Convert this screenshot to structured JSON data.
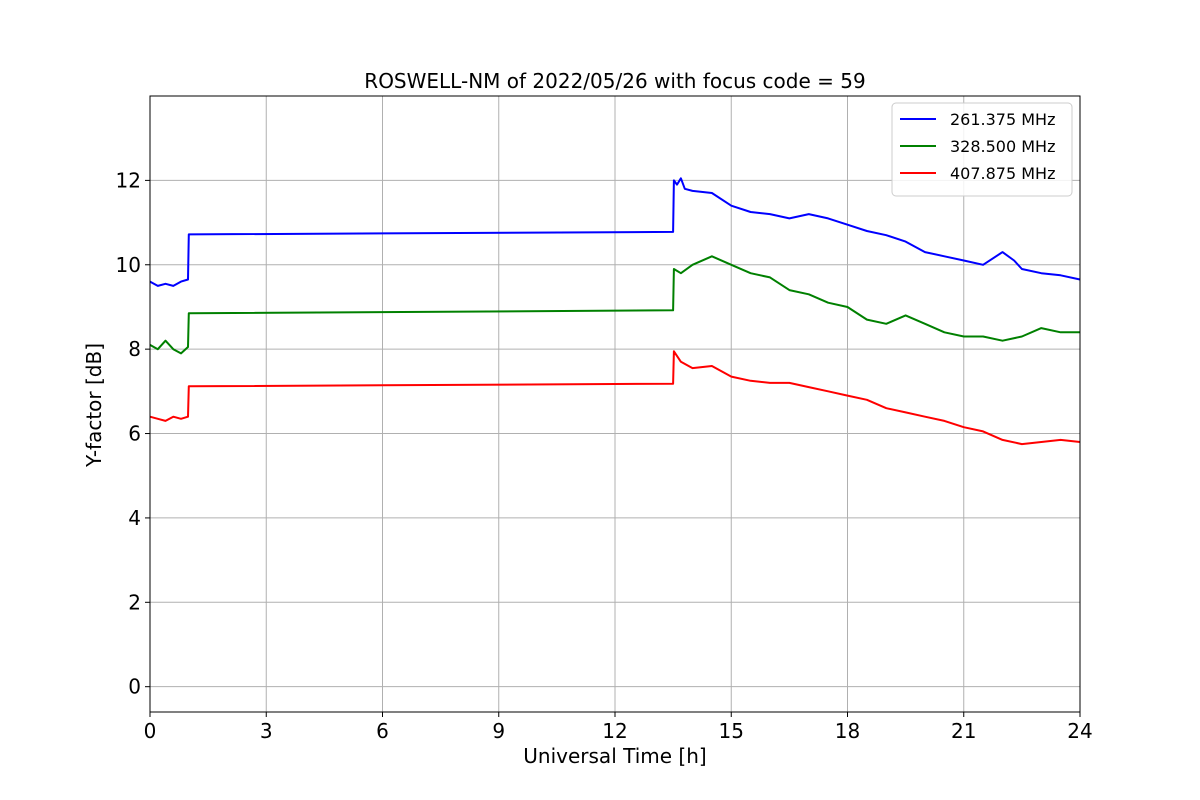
{
  "chart_data": {
    "type": "line",
    "title": "ROSWELL-NM of 2022/05/26 with focus code = 59",
    "xlabel": "Universal Time [h]",
    "ylabel": "Y-factor [dB]",
    "xlim": [
      0,
      24
    ],
    "ylim": [
      -0.6,
      14
    ],
    "xticks": [
      0,
      3,
      6,
      9,
      12,
      15,
      18,
      21,
      24
    ],
    "yticks": [
      0,
      2,
      4,
      6,
      8,
      10,
      12
    ],
    "grid": true,
    "legend_position": "top-right",
    "series": [
      {
        "name": "261.375 MHz",
        "color": "#0000ff",
        "points": [
          [
            0,
            9.6
          ],
          [
            0.2,
            9.5
          ],
          [
            0.4,
            9.55
          ],
          [
            0.6,
            9.5
          ],
          [
            0.8,
            9.6
          ],
          [
            0.98,
            9.65
          ],
          [
            1.0,
            10.72
          ],
          [
            13.5,
            10.78
          ],
          [
            13.52,
            12.0
          ],
          [
            13.6,
            11.9
          ],
          [
            13.7,
            12.05
          ],
          [
            13.8,
            11.8
          ],
          [
            14.0,
            11.75
          ],
          [
            14.5,
            11.7
          ],
          [
            15.0,
            11.4
          ],
          [
            15.5,
            11.25
          ],
          [
            16.0,
            11.2
          ],
          [
            16.5,
            11.1
          ],
          [
            17.0,
            11.2
          ],
          [
            17.5,
            11.1
          ],
          [
            18.0,
            10.95
          ],
          [
            18.5,
            10.8
          ],
          [
            19.0,
            10.7
          ],
          [
            19.5,
            10.55
          ],
          [
            20.0,
            10.3
          ],
          [
            20.5,
            10.2
          ],
          [
            21.0,
            10.1
          ],
          [
            21.5,
            10.0
          ],
          [
            22.0,
            10.3
          ],
          [
            22.3,
            10.1
          ],
          [
            22.5,
            9.9
          ],
          [
            23.0,
            9.8
          ],
          [
            23.5,
            9.75
          ],
          [
            24.0,
            9.65
          ]
        ]
      },
      {
        "name": "328.500 MHz",
        "color": "#008000",
        "points": [
          [
            0,
            8.1
          ],
          [
            0.2,
            8.0
          ],
          [
            0.4,
            8.2
          ],
          [
            0.6,
            8.0
          ],
          [
            0.8,
            7.9
          ],
          [
            0.98,
            8.05
          ],
          [
            1.0,
            8.85
          ],
          [
            13.5,
            8.92
          ],
          [
            13.52,
            9.9
          ],
          [
            13.7,
            9.8
          ],
          [
            14.0,
            10.0
          ],
          [
            14.5,
            10.2
          ],
          [
            15.0,
            10.0
          ],
          [
            15.5,
            9.8
          ],
          [
            16.0,
            9.7
          ],
          [
            16.5,
            9.4
          ],
          [
            17.0,
            9.3
          ],
          [
            17.5,
            9.1
          ],
          [
            18.0,
            9.0
          ],
          [
            18.5,
            8.7
          ],
          [
            19.0,
            8.6
          ],
          [
            19.5,
            8.8
          ],
          [
            20.0,
            8.6
          ],
          [
            20.5,
            8.4
          ],
          [
            21.0,
            8.3
          ],
          [
            21.5,
            8.3
          ],
          [
            22.0,
            8.2
          ],
          [
            22.5,
            8.3
          ],
          [
            23.0,
            8.5
          ],
          [
            23.5,
            8.4
          ],
          [
            24.0,
            8.4
          ]
        ]
      },
      {
        "name": "407.875 MHz",
        "color": "#ff0000",
        "points": [
          [
            0,
            6.4
          ],
          [
            0.2,
            6.35
          ],
          [
            0.4,
            6.3
          ],
          [
            0.6,
            6.4
          ],
          [
            0.8,
            6.35
          ],
          [
            0.98,
            6.4
          ],
          [
            1.0,
            7.12
          ],
          [
            13.5,
            7.18
          ],
          [
            13.52,
            7.95
          ],
          [
            13.7,
            7.7
          ],
          [
            14.0,
            7.55
          ],
          [
            14.5,
            7.6
          ],
          [
            15.0,
            7.35
          ],
          [
            15.5,
            7.25
          ],
          [
            16.0,
            7.2
          ],
          [
            16.5,
            7.2
          ],
          [
            17.0,
            7.1
          ],
          [
            17.5,
            7.0
          ],
          [
            18.0,
            6.9
          ],
          [
            18.5,
            6.8
          ],
          [
            19.0,
            6.6
          ],
          [
            19.5,
            6.5
          ],
          [
            20.0,
            6.4
          ],
          [
            20.5,
            6.3
          ],
          [
            21.0,
            6.15
          ],
          [
            21.5,
            6.05
          ],
          [
            22.0,
            5.85
          ],
          [
            22.5,
            5.75
          ],
          [
            23.0,
            5.8
          ],
          [
            23.5,
            5.85
          ],
          [
            24.0,
            5.8
          ]
        ]
      }
    ]
  }
}
